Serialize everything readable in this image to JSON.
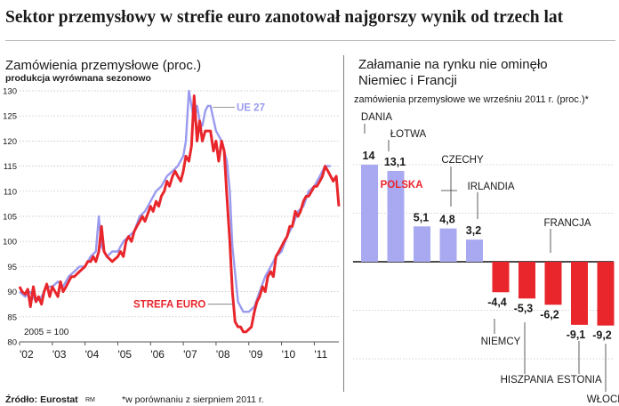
{
  "headline": "Sektor przemysłowy w strefie euro zanotował najgorszy wynik od trzech lat",
  "footer": {
    "source": "Źródło: Eurostat",
    "rm": "RM",
    "note": "*w porównaniu z sierpniem 2011 r."
  },
  "colors": {
    "ue27": "#9a9af0",
    "strefa": "#e8262c",
    "bar_positive": "#a9a9f2",
    "bar_negative": "#e8262c",
    "polska": "#e8262c"
  },
  "chart_data": [
    {
      "type": "line",
      "title": "Zamówienia przemysłowe (proc.)",
      "subtitle": "produkcja wyrównana sezonowo",
      "annotation": "2005 = 100",
      "ylim": [
        80,
        130
      ],
      "yticks": [
        80,
        85,
        90,
        95,
        100,
        105,
        110,
        115,
        120,
        125,
        130
      ],
      "xlim": [
        2002.0,
        2011.75
      ],
      "xticks": [
        2002,
        2003,
        2004,
        2005,
        2006,
        2007,
        2008,
        2009,
        2010,
        2011
      ],
      "xtick_labels": [
        "'02",
        "'03",
        "'04",
        "'05",
        "'06",
        "'07",
        "'08",
        "'09",
        "'10",
        "'11"
      ],
      "series": [
        {
          "name": "UE 27",
          "x": [
            2002.0,
            2002.17,
            2002.33,
            2002.5,
            2002.67,
            2002.83,
            2003.0,
            2003.17,
            2003.33,
            2003.5,
            2003.67,
            2003.83,
            2004.0,
            2004.17,
            2004.33,
            2004.42,
            2004.5,
            2004.67,
            2004.83,
            2005.0,
            2005.17,
            2005.33,
            2005.5,
            2005.67,
            2005.83,
            2006.0,
            2006.17,
            2006.33,
            2006.5,
            2006.67,
            2006.83,
            2007.0,
            2007.08,
            2007.17,
            2007.33,
            2007.42,
            2007.5,
            2007.58,
            2007.67,
            2007.75,
            2007.83,
            2008.0,
            2008.17,
            2008.33,
            2008.42,
            2008.5,
            2008.67,
            2008.83,
            2009.0,
            2009.17,
            2009.33,
            2009.5,
            2009.67,
            2009.83,
            2010.0,
            2010.17,
            2010.33,
            2010.5,
            2010.67,
            2010.83,
            2011.0,
            2011.17,
            2011.33,
            2011.5
          ],
          "y": [
            90,
            89,
            90,
            88,
            89,
            91,
            91,
            92,
            91,
            93,
            94,
            95,
            95,
            97,
            98,
            105,
            99,
            97,
            98,
            98,
            100,
            101,
            102,
            105,
            106,
            108,
            110,
            111,
            113,
            114,
            115,
            117,
            120,
            130,
            124,
            127,
            124,
            123,
            126,
            127,
            127,
            122,
            120,
            116,
            110,
            99,
            88,
            86,
            86,
            87,
            90,
            93,
            95,
            97,
            98,
            101,
            103,
            106,
            107,
            110,
            111,
            113,
            115,
            115
          ]
        },
        {
          "name": "STREFA EURO",
          "x": [
            2002.0,
            2002.08,
            2002.17,
            2002.25,
            2002.33,
            2002.42,
            2002.5,
            2002.58,
            2002.67,
            2002.75,
            2002.83,
            2002.92,
            2003.0,
            2003.17,
            2003.25,
            2003.33,
            2003.42,
            2003.5,
            2003.58,
            2003.67,
            2003.83,
            2004.0,
            2004.08,
            2004.17,
            2004.25,
            2004.33,
            2004.42,
            2004.5,
            2004.58,
            2004.67,
            2004.83,
            2005.0,
            2005.08,
            2005.17,
            2005.25,
            2005.33,
            2005.42,
            2005.5,
            2005.58,
            2005.67,
            2005.75,
            2005.83,
            2006.0,
            2006.08,
            2006.17,
            2006.25,
            2006.33,
            2006.42,
            2006.5,
            2006.58,
            2006.67,
            2006.75,
            2006.83,
            2006.92,
            2007.0,
            2007.08,
            2007.17,
            2007.25,
            2007.33,
            2007.42,
            2007.5,
            2007.58,
            2007.67,
            2007.75,
            2007.83,
            2007.92,
            2008.0,
            2008.08,
            2008.17,
            2008.25,
            2008.33,
            2008.42,
            2008.5,
            2008.58,
            2008.67,
            2008.75,
            2008.83,
            2008.92,
            2009.0,
            2009.08,
            2009.17,
            2009.25,
            2009.33,
            2009.42,
            2009.5,
            2009.58,
            2009.67,
            2009.75,
            2009.83,
            2009.92,
            2010.0,
            2010.08,
            2010.17,
            2010.25,
            2010.33,
            2010.42,
            2010.5,
            2010.58,
            2010.67,
            2010.75,
            2010.83,
            2010.92,
            2011.0,
            2011.08,
            2011.17,
            2011.25,
            2011.33,
            2011.42,
            2011.5,
            2011.58,
            2011.67,
            2011.75
          ],
          "y": [
            91,
            90,
            89.5,
            90.5,
            87,
            91,
            88,
            89,
            87.5,
            90,
            91.5,
            89,
            91,
            89,
            92,
            90,
            91,
            92,
            93,
            93,
            94,
            95,
            96,
            96,
            97,
            96,
            98,
            103,
            98,
            97,
            96,
            97,
            98,
            97,
            100,
            101,
            100,
            102,
            103,
            104,
            105,
            104,
            107,
            106,
            108,
            107,
            109,
            110,
            112,
            111,
            113,
            114,
            113,
            112,
            114,
            117,
            116,
            119,
            129,
            120,
            124,
            120,
            122,
            122,
            122,
            118,
            120,
            116,
            120,
            118,
            109,
            100,
            90,
            84,
            83,
            83,
            82,
            82,
            82.5,
            83,
            86,
            88,
            89,
            91,
            90,
            93,
            94,
            93,
            97,
            98,
            99,
            100,
            101,
            103,
            103,
            106,
            105,
            106,
            108,
            109,
            109,
            110,
            111,
            111,
            112,
            113,
            115,
            114,
            113,
            112,
            113,
            107
          ]
        }
      ],
      "labels": {
        "ue27": "UE 27",
        "strefa": "STREFA EURO"
      }
    },
    {
      "type": "bar",
      "title": "Załamanie na rynku nie ominęło Niemiec i Francji",
      "subtitle": "zamówienia przemysłowe we wrześniu 2011 r. (proc.)*",
      "ylim": [
        -13,
        16
      ],
      "categories": [
        "DANIA",
        "ŁOTWA",
        "POLSKA",
        "CZECHY",
        "IRLANDIA",
        "NIEMCY",
        "HISZPANIA",
        "FRANCJA",
        "ESTONIA",
        "WŁOCHY"
      ],
      "values": [
        14,
        13.1,
        5.1,
        4.8,
        3.2,
        -4.4,
        -5.3,
        -6.2,
        -9.1,
        -9.2
      ],
      "value_labels": [
        "14",
        "13,1",
        "5,1",
        "4,8",
        "3,2",
        "-4,4",
        "-5,3",
        "-6,2",
        "-9,1",
        "-9,2"
      ],
      "highlight": "POLSKA"
    }
  ]
}
